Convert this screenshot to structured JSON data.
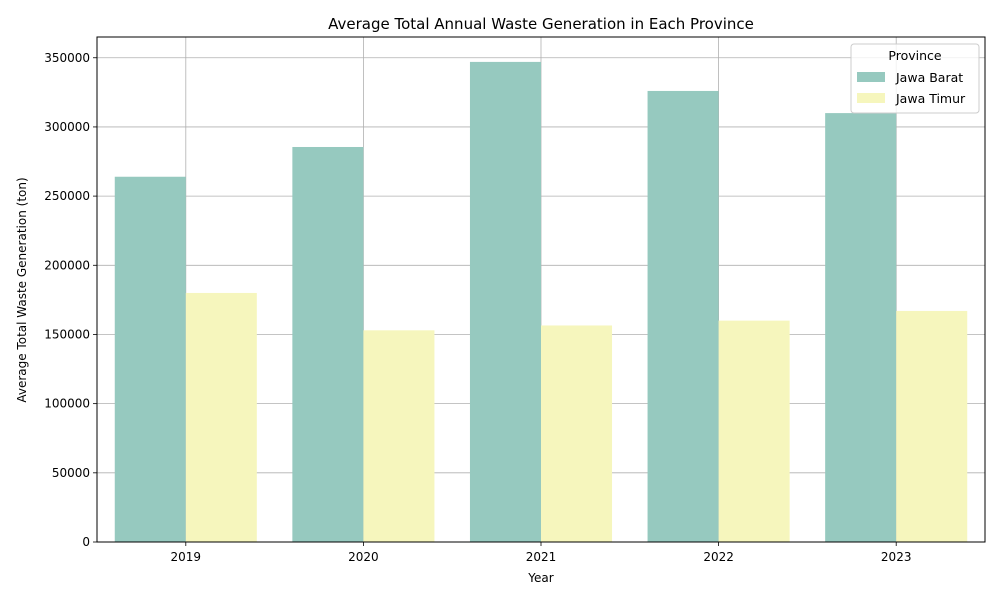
{
  "chart_data": {
    "type": "bar",
    "title": "Average Total Annual Waste Generation in Each Province",
    "xlabel": "Year",
    "ylabel": "Average Total Waste Generation (ton)",
    "categories": [
      "2019",
      "2020",
      "2021",
      "2022",
      "2023"
    ],
    "series": [
      {
        "name": "Jawa Barat",
        "color": "#96c9bf",
        "values": [
          264000,
          285500,
          347000,
          326000,
          310000
        ]
      },
      {
        "name": "Jawa Timur",
        "color": "#f6f6bd",
        "values": [
          180000,
          153000,
          156500,
          160000,
          167000
        ]
      }
    ],
    "ylim": [
      0,
      365000
    ],
    "yticks": [
      0,
      50000,
      100000,
      150000,
      200000,
      250000,
      300000,
      350000
    ],
    "grid": true,
    "legend": {
      "title": "Province",
      "position": "top-right"
    }
  }
}
